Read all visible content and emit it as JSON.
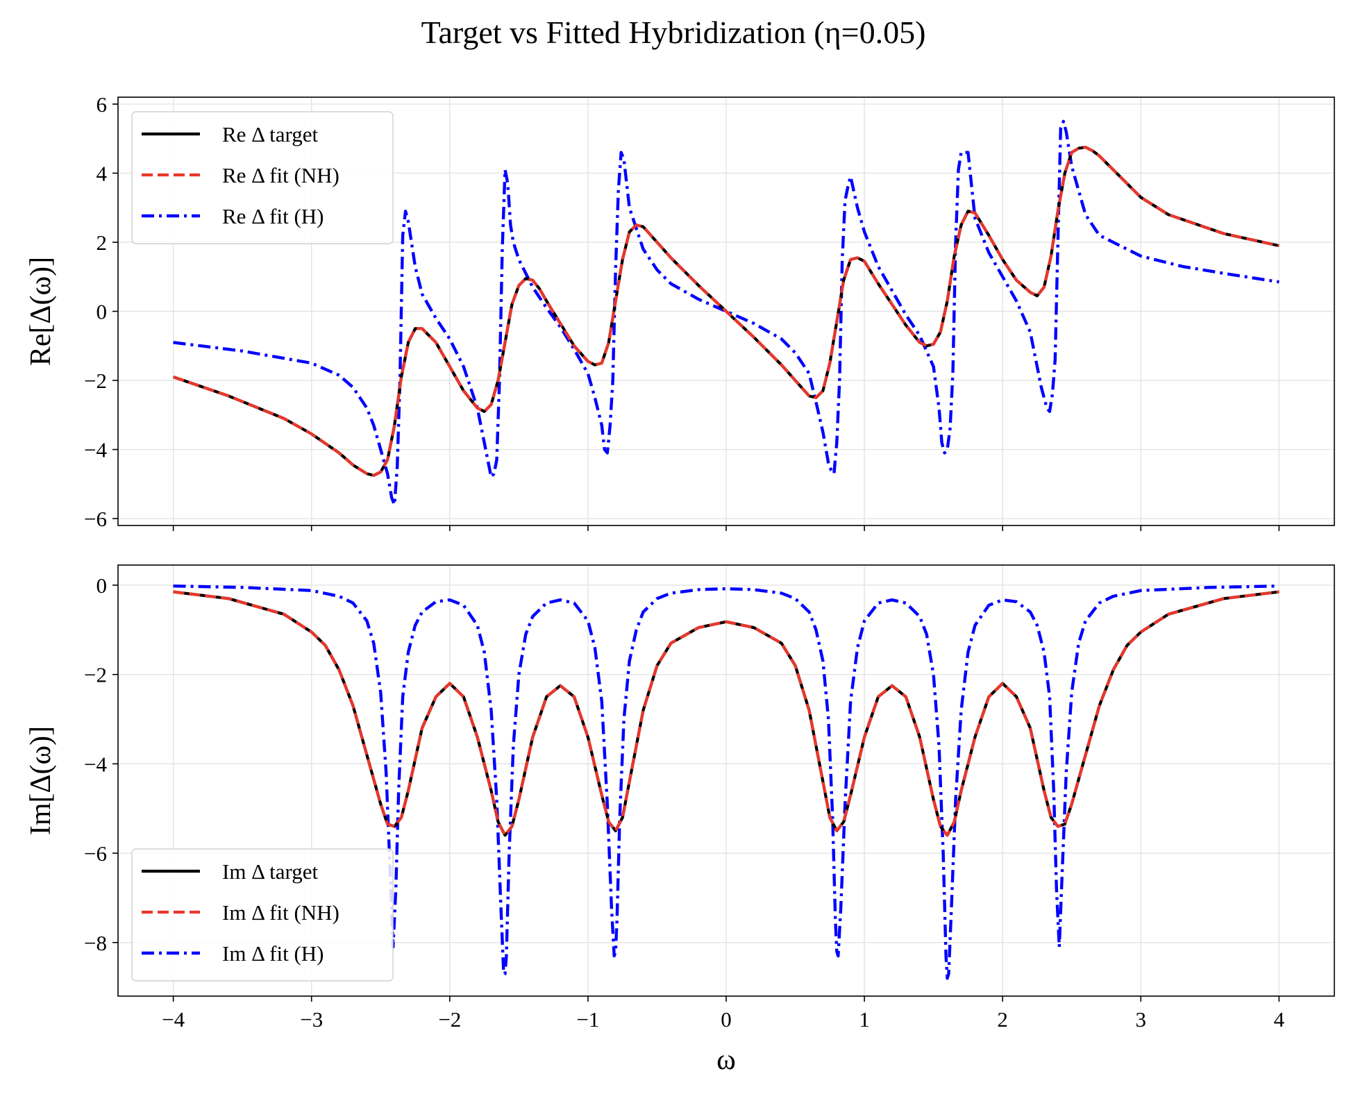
{
  "figure": {
    "suptitle": "Target vs Fitted Hybridization (η=0.05)",
    "xlabel": "ω"
  },
  "colors": {
    "target": "#000000",
    "fit_nh": "#e8372c",
    "fit_h": "#0000ff"
  },
  "chart_data": [
    {
      "type": "line",
      "ylabel": "Re[Δ(ω)]",
      "xlim": [
        -4.4,
        4.4
      ],
      "ylim": [
        -6.2,
        6.2
      ],
      "xticks": [
        -4,
        -3,
        -2,
        -1,
        0,
        1,
        2,
        3,
        4
      ],
      "xtick_labels": [
        "−4",
        "−3",
        "−2",
        "−1",
        "0",
        "1",
        "2",
        "3",
        "4"
      ],
      "yticks": [
        -6,
        -4,
        -2,
        0,
        2,
        4,
        6
      ],
      "ytick_labels": [
        "−6",
        "−4",
        "−2",
        "0",
        "2",
        "4",
        "6"
      ],
      "grid": true,
      "legend_position": "top-left",
      "series": [
        {
          "name": "Re Δ target",
          "style": "solid",
          "x": [
            -4,
            -3.6,
            -3.2,
            -3,
            -2.8,
            -2.7,
            -2.6,
            -2.55,
            -2.5,
            -2.45,
            -2.4,
            -2.35,
            -2.3,
            -2.25,
            -2.2,
            -2.1,
            -2,
            -1.9,
            -1.8,
            -1.75,
            -1.7,
            -1.65,
            -1.6,
            -1.55,
            -1.5,
            -1.45,
            -1.4,
            -1.35,
            -1.3,
            -1.2,
            -1.1,
            -1,
            -0.95,
            -0.9,
            -0.85,
            -0.8,
            -0.75,
            -0.7,
            -0.65,
            -0.6,
            -0.5,
            -0.4,
            -0.2,
            0,
            0.2,
            0.4,
            0.5,
            0.6,
            0.65,
            0.7,
            0.75,
            0.8,
            0.85,
            0.9,
            0.95,
            1,
            1.1,
            1.2,
            1.3,
            1.4,
            1.45,
            1.5,
            1.55,
            1.6,
            1.65,
            1.7,
            1.75,
            1.8,
            1.9,
            2,
            2.1,
            2.2,
            2.25,
            2.3,
            2.35,
            2.4,
            2.45,
            2.5,
            2.55,
            2.6,
            2.65,
            2.7,
            2.8,
            3,
            3.2,
            3.6,
            4
          ],
          "y": [
            -1.9,
            -2.45,
            -3.1,
            -3.55,
            -4.1,
            -4.45,
            -4.7,
            -4.75,
            -4.65,
            -4.3,
            -3.3,
            -1.9,
            -0.9,
            -0.5,
            -0.5,
            -0.9,
            -1.6,
            -2.3,
            -2.8,
            -2.9,
            -2.7,
            -2.0,
            -0.9,
            0.2,
            0.75,
            0.95,
            0.9,
            0.65,
            0.3,
            -0.35,
            -1.0,
            -1.45,
            -1.55,
            -1.5,
            -0.9,
            0.3,
            1.5,
            2.3,
            2.5,
            2.45,
            2.0,
            1.55,
            0.75,
            0.0,
            -0.75,
            -1.55,
            -2.0,
            -2.45,
            -2.5,
            -2.3,
            -1.5,
            -0.3,
            0.9,
            1.5,
            1.55,
            1.45,
            0.8,
            0.2,
            -0.4,
            -0.9,
            -1.0,
            -0.95,
            -0.6,
            0.3,
            1.6,
            2.5,
            2.9,
            2.85,
            2.2,
            1.5,
            0.9,
            0.55,
            0.45,
            0.7,
            1.6,
            2.9,
            4.0,
            4.6,
            4.72,
            4.75,
            4.65,
            4.5,
            4.1,
            3.3,
            2.8,
            2.25,
            1.9
          ]
        },
        {
          "name": "Re Δ fit (NH)",
          "style": "dashed",
          "same_as": 0
        },
        {
          "name": "Re Δ fit (H)",
          "style": "dashdot",
          "x": [
            -4,
            -3.5,
            -3,
            -2.8,
            -2.7,
            -2.6,
            -2.55,
            -2.5,
            -2.45,
            -2.42,
            -2.4,
            -2.38,
            -2.36,
            -2.34,
            -2.32,
            -2.3,
            -2.25,
            -2.2,
            -2.1,
            -2.0,
            -1.9,
            -1.8,
            -1.75,
            -1.7,
            -1.68,
            -1.66,
            -1.64,
            -1.62,
            -1.6,
            -1.58,
            -1.56,
            -1.54,
            -1.5,
            -1.4,
            -1.3,
            -1.2,
            -1.1,
            -1.0,
            -0.95,
            -0.9,
            -0.88,
            -0.86,
            -0.84,
            -0.82,
            -0.8,
            -0.78,
            -0.76,
            -0.74,
            -0.7,
            -0.6,
            -0.5,
            -0.4,
            -0.2,
            0,
            0.2,
            0.4,
            0.5,
            0.6,
            0.66,
            0.7,
            0.74,
            0.76,
            0.78,
            0.8,
            0.82,
            0.84,
            0.86,
            0.88,
            0.9,
            0.95,
            1.0,
            1.1,
            1.2,
            1.3,
            1.4,
            1.5,
            1.54,
            1.56,
            1.58,
            1.6,
            1.62,
            1.64,
            1.66,
            1.68,
            1.7,
            1.75,
            1.8,
            1.9,
            2.0,
            2.1,
            2.2,
            2.28,
            2.32,
            2.34,
            2.36,
            2.38,
            2.4,
            2.42,
            2.44,
            2.46,
            2.5,
            2.6,
            2.7,
            3.0,
            3.3,
            3.6,
            4.0
          ],
          "y": [
            -0.9,
            -1.15,
            -1.5,
            -1.85,
            -2.2,
            -2.8,
            -3.3,
            -4.0,
            -4.7,
            -5.4,
            -5.6,
            -4.5,
            -2.0,
            2.2,
            2.9,
            2.6,
            1.3,
            0.5,
            -0.2,
            -0.8,
            -1.6,
            -2.8,
            -3.8,
            -4.8,
            -4.7,
            -4.3,
            -2.0,
            1.8,
            4.1,
            3.7,
            2.5,
            2.0,
            1.5,
            0.7,
            0.1,
            -0.45,
            -1.1,
            -1.8,
            -2.5,
            -3.3,
            -4.0,
            -4.1,
            -3.3,
            -2.0,
            1.2,
            3.5,
            4.6,
            4.4,
            3.0,
            1.8,
            1.2,
            0.8,
            0.35,
            0.0,
            -0.35,
            -0.8,
            -1.2,
            -1.8,
            -2.8,
            -3.5,
            -4.4,
            -4.6,
            -4.7,
            -3.8,
            -2.0,
            1.5,
            3.2,
            3.6,
            3.9,
            3.0,
            2.3,
            1.3,
            0.6,
            -0.1,
            -0.7,
            -1.6,
            -2.8,
            -3.8,
            -4.1,
            -4.0,
            -3.4,
            -1.8,
            2.0,
            4.1,
            4.6,
            4.6,
            2.7,
            1.7,
            1.0,
            0.3,
            -0.6,
            -2.2,
            -2.8,
            -2.9,
            -2.4,
            -1.4,
            2.0,
            5.3,
            5.5,
            5.2,
            4.2,
            2.8,
            2.2,
            1.6,
            1.3,
            1.1,
            0.85
          ]
        }
      ]
    },
    {
      "type": "line",
      "ylabel": "Im[Δ(ω)]",
      "xlim": [
        -4.4,
        4.4
      ],
      "ylim": [
        -9.2,
        0.45
      ],
      "xticks": [
        -4,
        -3,
        -2,
        -1,
        0,
        1,
        2,
        3,
        4
      ],
      "xtick_labels": [
        "−4",
        "−3",
        "−2",
        "−1",
        "0",
        "1",
        "2",
        "3",
        "4"
      ],
      "yticks": [
        -8,
        -6,
        -4,
        -2,
        0
      ],
      "ytick_labels": [
        "−8",
        "−6",
        "−4",
        "−2",
        "0"
      ],
      "grid": true,
      "legend_position": "bottom-left",
      "series": [
        {
          "name": "Im Δ target",
          "style": "solid",
          "x": [
            -4,
            -3.6,
            -3.2,
            -3,
            -2.9,
            -2.8,
            -2.7,
            -2.6,
            -2.5,
            -2.45,
            -2.4,
            -2.35,
            -2.3,
            -2.2,
            -2.1,
            -2,
            -1.9,
            -1.8,
            -1.7,
            -1.65,
            -1.6,
            -1.55,
            -1.5,
            -1.4,
            -1.3,
            -1.2,
            -1.1,
            -1,
            -0.9,
            -0.85,
            -0.8,
            -0.75,
            -0.7,
            -0.6,
            -0.5,
            -0.4,
            -0.2,
            0,
            0.2,
            0.4,
            0.5,
            0.6,
            0.7,
            0.75,
            0.8,
            0.85,
            0.9,
            1,
            1.1,
            1.2,
            1.3,
            1.4,
            1.5,
            1.55,
            1.6,
            1.65,
            1.7,
            1.8,
            1.9,
            2,
            2.1,
            2.2,
            2.3,
            2.35,
            2.4,
            2.45,
            2.5,
            2.6,
            2.7,
            2.8,
            2.9,
            3,
            3.2,
            3.6,
            4
          ],
          "y": [
            -0.15,
            -0.3,
            -0.65,
            -1.05,
            -1.35,
            -1.9,
            -2.7,
            -3.8,
            -4.9,
            -5.35,
            -5.4,
            -5.2,
            -4.6,
            -3.2,
            -2.5,
            -2.2,
            -2.5,
            -3.4,
            -4.6,
            -5.3,
            -5.6,
            -5.4,
            -4.8,
            -3.4,
            -2.5,
            -2.25,
            -2.5,
            -3.4,
            -4.7,
            -5.3,
            -5.5,
            -5.2,
            -4.4,
            -2.8,
            -1.8,
            -1.3,
            -0.95,
            -0.82,
            -0.95,
            -1.3,
            -1.8,
            -2.8,
            -4.4,
            -5.2,
            -5.5,
            -5.3,
            -4.7,
            -3.4,
            -2.5,
            -2.25,
            -2.5,
            -3.4,
            -4.8,
            -5.4,
            -5.6,
            -5.3,
            -4.6,
            -3.4,
            -2.5,
            -2.2,
            -2.5,
            -3.2,
            -4.6,
            -5.2,
            -5.4,
            -5.35,
            -4.9,
            -3.8,
            -2.7,
            -1.9,
            -1.35,
            -1.05,
            -0.65,
            -0.3,
            -0.15
          ]
        },
        {
          "name": "Im Δ fit (NH)",
          "style": "dashed",
          "same_as": 0
        },
        {
          "name": "Im Δ fit (H)",
          "style": "dashdot",
          "x": [
            -4,
            -3.5,
            -3,
            -2.8,
            -2.7,
            -2.6,
            -2.55,
            -2.5,
            -2.46,
            -2.43,
            -2.41,
            -2.39,
            -2.37,
            -2.34,
            -2.3,
            -2.25,
            -2.2,
            -2.1,
            -2,
            -1.9,
            -1.8,
            -1.75,
            -1.7,
            -1.66,
            -1.63,
            -1.61,
            -1.6,
            -1.59,
            -1.57,
            -1.54,
            -1.5,
            -1.45,
            -1.4,
            -1.3,
            -1.2,
            -1.1,
            -1,
            -0.95,
            -0.9,
            -0.86,
            -0.83,
            -0.81,
            -0.8,
            -0.79,
            -0.77,
            -0.74,
            -0.7,
            -0.65,
            -0.6,
            -0.5,
            -0.4,
            -0.2,
            0,
            0.2,
            0.4,
            0.5,
            0.6,
            0.65,
            0.7,
            0.74,
            0.77,
            0.79,
            0.8,
            0.81,
            0.83,
            0.86,
            0.9,
            0.95,
            1,
            1.1,
            1.2,
            1.3,
            1.4,
            1.45,
            1.5,
            1.54,
            1.57,
            1.59,
            1.6,
            1.61,
            1.63,
            1.66,
            1.7,
            1.75,
            1.8,
            1.9,
            2,
            2.1,
            2.2,
            2.25,
            2.3,
            2.34,
            2.37,
            2.39,
            2.41,
            2.43,
            2.46,
            2.5,
            2.55,
            2.6,
            2.7,
            2.8,
            3,
            3.5,
            4
          ],
          "y": [
            -0.02,
            -0.05,
            -0.12,
            -0.25,
            -0.4,
            -0.8,
            -1.3,
            -2.4,
            -4.2,
            -6.5,
            -8.1,
            -6.8,
            -4.6,
            -2.5,
            -1.5,
            -0.9,
            -0.6,
            -0.37,
            -0.33,
            -0.45,
            -0.9,
            -1.5,
            -2.8,
            -4.8,
            -7.2,
            -8.7,
            -8.7,
            -8.3,
            -6.0,
            -3.6,
            -2.0,
            -1.1,
            -0.7,
            -0.4,
            -0.33,
            -0.4,
            -0.8,
            -1.4,
            -2.6,
            -4.9,
            -7.2,
            -8.3,
            -8.2,
            -7.5,
            -5.2,
            -3.0,
            -1.7,
            -1.0,
            -0.6,
            -0.3,
            -0.18,
            -0.1,
            -0.08,
            -0.1,
            -0.18,
            -0.3,
            -0.6,
            -1.0,
            -1.7,
            -3.0,
            -5.2,
            -7.5,
            -8.2,
            -8.3,
            -7.2,
            -4.9,
            -2.6,
            -1.4,
            -0.8,
            -0.4,
            -0.33,
            -0.4,
            -0.7,
            -1.1,
            -2.0,
            -3.6,
            -6.0,
            -8.3,
            -8.8,
            -8.7,
            -7.2,
            -4.8,
            -2.8,
            -1.5,
            -0.9,
            -0.45,
            -0.33,
            -0.37,
            -0.6,
            -0.9,
            -1.5,
            -2.5,
            -4.6,
            -6.8,
            -8.1,
            -6.5,
            -4.2,
            -2.4,
            -1.3,
            -0.8,
            -0.4,
            -0.25,
            -0.12,
            -0.05,
            -0.02
          ]
        }
      ]
    }
  ]
}
